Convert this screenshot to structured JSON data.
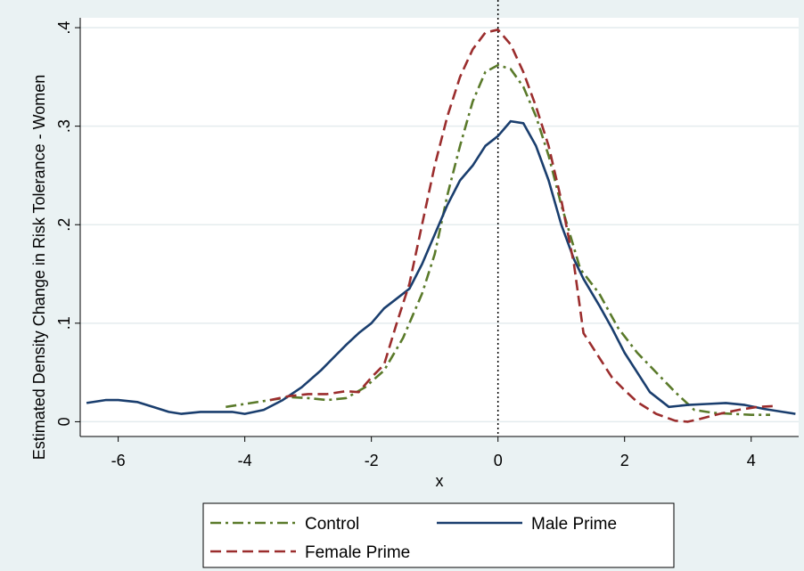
{
  "chart_data": {
    "type": "line",
    "title": "",
    "xlabel": "x",
    "ylabel": "Estimated Density Change in Risk Tolerance - Women",
    "xlim": [
      -6.6,
      4.75
    ],
    "ylim": [
      -0.015,
      0.41
    ],
    "x_ticks": [
      -6,
      -4,
      -2,
      0,
      2,
      4
    ],
    "x_tick_labels": [
      "-6",
      "-4",
      "-2",
      "0",
      "2",
      "4"
    ],
    "y_ticks": [
      0,
      0.1,
      0.2,
      0.3,
      0.4
    ],
    "y_tick_labels": [
      "0",
      ".1",
      ".2",
      ".3",
      ".4"
    ],
    "grid": "horizontal",
    "reference_line_x": 0,
    "legend": {
      "position": "bottom",
      "columns": 2
    },
    "series": [
      {
        "name": "Control",
        "color": "#5a7a2a",
        "dash": "dash-dot",
        "x": [
          -4.3,
          -4.0,
          -3.6,
          -3.3,
          -3.0,
          -2.7,
          -2.4,
          -2.1,
          -1.8,
          -1.5,
          -1.2,
          -1.0,
          -0.8,
          -0.6,
          -0.4,
          -0.2,
          0.0,
          0.2,
          0.4,
          0.6,
          0.8,
          1.0,
          1.3,
          1.6,
          1.9,
          2.2,
          2.5,
          2.8,
          3.1,
          3.4,
          3.7,
          4.0,
          4.3
        ],
        "y": [
          0.015,
          0.018,
          0.022,
          0.025,
          0.024,
          0.022,
          0.024,
          0.035,
          0.052,
          0.085,
          0.13,
          0.17,
          0.23,
          0.28,
          0.325,
          0.355,
          0.362,
          0.358,
          0.34,
          0.31,
          0.27,
          0.22,
          0.155,
          0.13,
          0.095,
          0.07,
          0.05,
          0.03,
          0.012,
          0.009,
          0.008,
          0.007,
          0.007
        ]
      },
      {
        "name": "Male Prime",
        "color": "#1a3e6e",
        "dash": "solid",
        "x": [
          -6.5,
          -6.2,
          -6.0,
          -5.7,
          -5.4,
          -5.2,
          -5.0,
          -4.7,
          -4.4,
          -4.2,
          -4.0,
          -3.7,
          -3.4,
          -3.1,
          -2.8,
          -2.6,
          -2.4,
          -2.2,
          -2.0,
          -1.8,
          -1.6,
          -1.4,
          -1.2,
          -1.0,
          -0.8,
          -0.6,
          -0.4,
          -0.2,
          0.0,
          0.2,
          0.4,
          0.6,
          0.8,
          1.0,
          1.2,
          1.35,
          1.6,
          1.8,
          2.0,
          2.2,
          2.4,
          2.7,
          3.0,
          3.3,
          3.6,
          3.9,
          4.2,
          4.5,
          4.7
        ],
        "y": [
          0.019,
          0.022,
          0.022,
          0.02,
          0.014,
          0.01,
          0.008,
          0.01,
          0.01,
          0.01,
          0.008,
          0.012,
          0.022,
          0.035,
          0.052,
          0.065,
          0.078,
          0.09,
          0.1,
          0.115,
          0.125,
          0.135,
          0.16,
          0.19,
          0.22,
          0.245,
          0.26,
          0.28,
          0.29,
          0.305,
          0.303,
          0.28,
          0.245,
          0.2,
          0.165,
          0.145,
          0.118,
          0.095,
          0.07,
          0.05,
          0.03,
          0.015,
          0.017,
          0.018,
          0.019,
          0.017,
          0.013,
          0.01,
          0.008
        ]
      },
      {
        "name": "Female Prime",
        "color": "#9b2d2d",
        "dash": "dash",
        "x": [
          -3.6,
          -3.3,
          -3.0,
          -2.7,
          -2.4,
          -2.2,
          -2.0,
          -1.8,
          -1.6,
          -1.4,
          -1.2,
          -1.0,
          -0.8,
          -0.6,
          -0.4,
          -0.2,
          0.0,
          0.2,
          0.4,
          0.6,
          0.8,
          1.0,
          1.2,
          1.35,
          1.6,
          1.8,
          2.0,
          2.2,
          2.5,
          2.8,
          3.0,
          3.2,
          3.5,
          3.8,
          4.1,
          4.4
        ],
        "y": [
          0.022,
          0.026,
          0.028,
          0.028,
          0.031,
          0.03,
          0.045,
          0.058,
          0.1,
          0.14,
          0.2,
          0.26,
          0.31,
          0.35,
          0.378,
          0.395,
          0.398,
          0.383,
          0.355,
          0.32,
          0.28,
          0.225,
          0.16,
          0.09,
          0.065,
          0.045,
          0.032,
          0.02,
          0.008,
          0.001,
          0.0,
          0.003,
          0.008,
          0.012,
          0.015,
          0.016
        ]
      }
    ]
  }
}
